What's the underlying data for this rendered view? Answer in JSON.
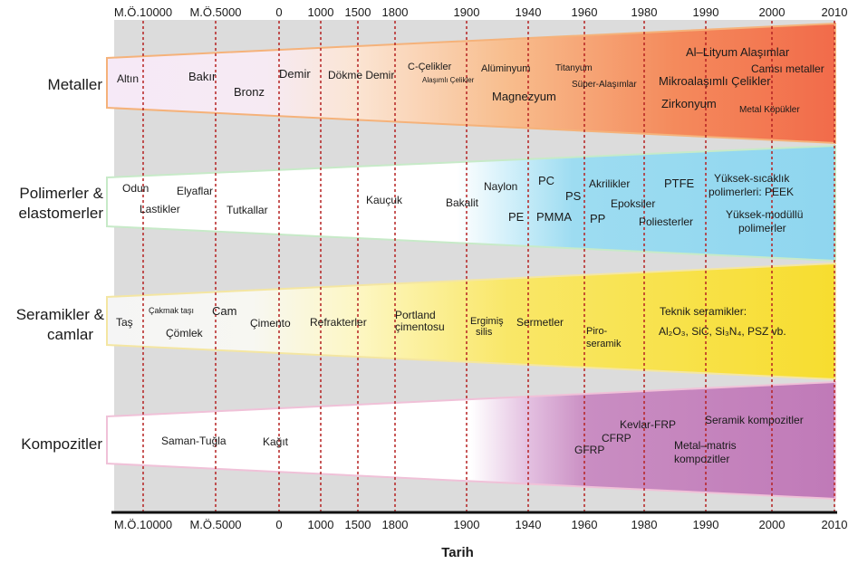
{
  "axis": {
    "title": "Tarih",
    "ticks": [
      "M.Ö.10000",
      "M.Ö.5000",
      "0",
      "1000",
      "1500",
      "1800",
      "1900",
      "1940",
      "1960",
      "1980",
      "1990",
      "2000",
      "2010"
    ]
  },
  "colors": {
    "background_band": "#dcdcdc",
    "gridline": "#b52222",
    "metaller": "#f26b4a",
    "polimerler": "#8fd6ef",
    "seramikler": "#f7dd2f",
    "kompozitler": "#c07ab8"
  },
  "categories": [
    {
      "key": "metaller",
      "label_lines": [
        "Metaller"
      ],
      "materials": [
        {
          "text": "Altın"
        },
        {
          "text": "Bakır"
        },
        {
          "text": "Bronz"
        },
        {
          "text": "Demir"
        },
        {
          "text": "Dökme Demir"
        },
        {
          "text": "C-Çelikler"
        },
        {
          "text": "Alaşımlı Çelikler"
        },
        {
          "text": "Alüminyum"
        },
        {
          "text": "Magnezyum"
        },
        {
          "text": "Titanyum"
        },
        {
          "text": "Süper-Alaşımlar"
        },
        {
          "text": "Al–Lityum Alaşımlar"
        },
        {
          "text": "Camsı metaller"
        },
        {
          "text": "Mikroalaşımlı Çelikler"
        },
        {
          "text": "Zirkonyum"
        },
        {
          "text": "Metal Köpükler"
        }
      ]
    },
    {
      "key": "polimerler",
      "label_lines": [
        "Polimerler  &",
        "elastomerler"
      ],
      "materials": [
        {
          "text": "Odun"
        },
        {
          "text": "Elyaflar"
        },
        {
          "text": "Lastikler"
        },
        {
          "text": "Tutkallar"
        },
        {
          "text": "Kauçuk"
        },
        {
          "text": "Bakalit"
        },
        {
          "text": "Naylon"
        },
        {
          "text": "PC"
        },
        {
          "text": "PE"
        },
        {
          "text": "PMMA"
        },
        {
          "text": "PS"
        },
        {
          "text": "PP"
        },
        {
          "text": "Akrilikler"
        },
        {
          "text": "Epoksiler"
        },
        {
          "text": "PTFE"
        },
        {
          "text": "Poliesterler"
        },
        {
          "text": "Yüksek-sıcaklık"
        },
        {
          "text": "polimerleri: PEEK"
        },
        {
          "text": "Yüksek-modüllü"
        },
        {
          "text": "polimerler"
        }
      ]
    },
    {
      "key": "seramikler",
      "label_lines": [
        "Seramikler &",
        "camlar"
      ],
      "materials": [
        {
          "text": "Taş"
        },
        {
          "text": "Çakmak taşı"
        },
        {
          "text": "Cam"
        },
        {
          "text": "Çömlek"
        },
        {
          "text": "Çimento"
        },
        {
          "text": "Refrakterler"
        },
        {
          "text": "Portland"
        },
        {
          "text": "çimentosu"
        },
        {
          "text": "Ergimiş"
        },
        {
          "text": "silis"
        },
        {
          "text": "Sermetler"
        },
        {
          "text": "Piro-"
        },
        {
          "text": "seramik"
        },
        {
          "text": "Teknik seramikler:"
        },
        {
          "text": "Al₂O₃,  SiC,  Si₃N₄,  PSZ  vb."
        }
      ]
    },
    {
      "key": "kompozitler",
      "label_lines": [
        "Kompozitler"
      ],
      "materials": [
        {
          "text": "Saman-Tuğla"
        },
        {
          "text": "Kağıt"
        },
        {
          "text": "Kevlar-FRP"
        },
        {
          "text": "Seramik kompozitler"
        },
        {
          "text": "CFRP"
        },
        {
          "text": "GFRP"
        },
        {
          "text": "Metal–matris"
        },
        {
          "text": "kompozitler"
        }
      ]
    }
  ]
}
